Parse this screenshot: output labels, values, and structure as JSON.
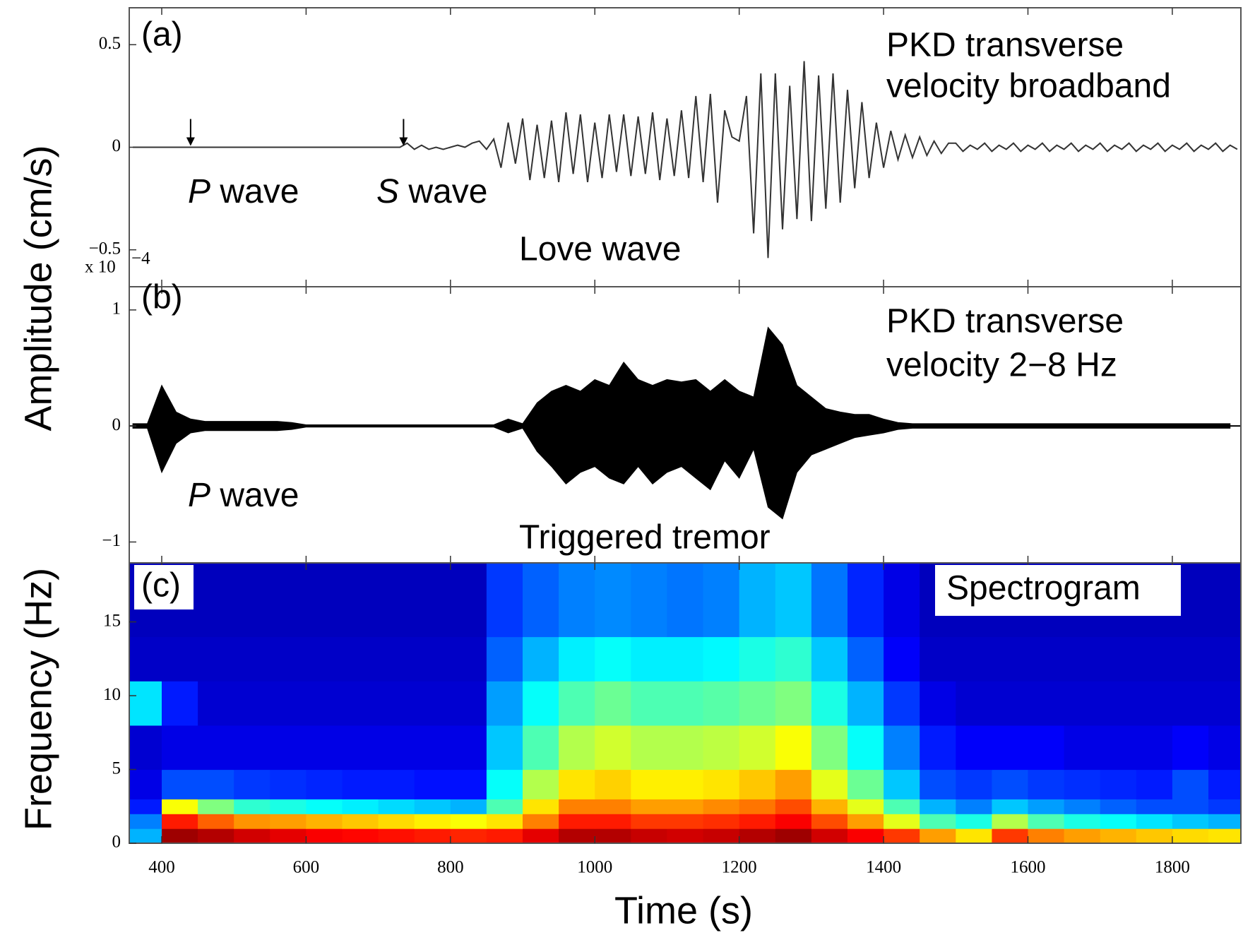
{
  "chart_data": [
    {
      "type": "line",
      "title": [
        "PKD transverse",
        "velocity broadband"
      ],
      "ylabel": "Amplitude (cm/s)",
      "annotations": [
        "(a)",
        "P wave",
        "S wave",
        "Love wave"
      ],
      "scale_label": "x 10",
      "scale_exponent": "−4",
      "arrows_x": [
        440,
        735
      ],
      "color": "#333333",
      "xlim": [
        355,
        1895
      ],
      "ylim": [
        -0.68,
        0.68
      ],
      "yticks": [
        0.5,
        0,
        {
          "value": -0.5,
          "label": "−0.5"
        }
      ],
      "x": [
        360,
        370,
        380,
        390,
        400,
        410,
        420,
        430,
        440,
        450,
        460,
        470,
        480,
        490,
        500,
        510,
        520,
        530,
        540,
        550,
        560,
        570,
        580,
        590,
        600,
        610,
        620,
        630,
        640,
        650,
        660,
        670,
        680,
        690,
        700,
        710,
        720,
        730,
        740,
        750,
        760,
        770,
        780,
        790,
        800,
        810,
        820,
        830,
        840,
        850,
        860,
        870,
        880,
        890,
        900,
        910,
        920,
        930,
        940,
        950,
        960,
        970,
        980,
        990,
        1000,
        1010,
        1020,
        1030,
        1040,
        1050,
        1060,
        1070,
        1080,
        1090,
        1100,
        1110,
        1120,
        1130,
        1140,
        1150,
        1160,
        1170,
        1180,
        1190,
        1200,
        1210,
        1220,
        1230,
        1240,
        1250,
        1260,
        1270,
        1280,
        1290,
        1300,
        1310,
        1320,
        1330,
        1340,
        1350,
        1360,
        1370,
        1380,
        1390,
        1400,
        1410,
        1420,
        1430,
        1440,
        1450,
        1460,
        1470,
        1480,
        1490,
        1500,
        1510,
        1520,
        1530,
        1540,
        1550,
        1560,
        1570,
        1580,
        1590,
        1600,
        1610,
        1620,
        1630,
        1640,
        1650,
        1660,
        1670,
        1680,
        1690,
        1700,
        1710,
        1720,
        1730,
        1740,
        1750,
        1760,
        1770,
        1780,
        1790,
        1800,
        1810,
        1820,
        1830,
        1840,
        1850,
        1860,
        1870,
        1880,
        1890
      ],
      "values": [
        0,
        0,
        0,
        0,
        0,
        0,
        0,
        0,
        0,
        0,
        0,
        0,
        0,
        0,
        0,
        0,
        0,
        0,
        0,
        0,
        0,
        0,
        0,
        0,
        0,
        0,
        0,
        0,
        0,
        0,
        0,
        0,
        0,
        0,
        0,
        0,
        0,
        0,
        0.02,
        -0.01,
        0.01,
        -0.01,
        0,
        -0.01,
        0,
        0.01,
        0,
        0.02,
        0.03,
        -0.01,
        0.04,
        -0.1,
        0.12,
        -0.08,
        0.14,
        -0.16,
        0.11,
        -0.15,
        0.13,
        -0.17,
        0.17,
        -0.13,
        0.16,
        -0.17,
        0.12,
        -0.15,
        0.16,
        -0.12,
        0.16,
        -0.14,
        0.15,
        -0.13,
        0.17,
        -0.16,
        0.14,
        -0.14,
        0.18,
        -0.15,
        0.25,
        -0.17,
        0.26,
        -0.27,
        0.18,
        0.05,
        0.03,
        0.25,
        -0.42,
        0.36,
        -0.54,
        0.36,
        -0.4,
        0.3,
        -0.35,
        0.42,
        -0.36,
        0.35,
        -0.3,
        0.36,
        -0.27,
        0.28,
        -0.2,
        0.22,
        -0.15,
        0.12,
        -0.1,
        0.08,
        -0.06,
        0.06,
        -0.05,
        0.05,
        -0.04,
        0.03,
        -0.03,
        0.02,
        0.02,
        -0.02,
        0.01,
        -0.01,
        0.02,
        -0.02,
        0.01,
        -0.01,
        0.02,
        -0.02,
        0.01,
        -0.01,
        0.02,
        -0.02,
        0.01,
        -0.01,
        0.02,
        -0.02,
        0.01,
        -0.01,
        0.02,
        -0.02,
        0.01,
        -0.01,
        0.02,
        -0.02,
        0.01,
        -0.01,
        0.02,
        -0.02,
        0.01,
        -0.01,
        0.02,
        -0.02,
        0.01,
        -0.01,
        0.02,
        -0.02,
        0.01,
        -0.01
      ]
    },
    {
      "type": "envelope",
      "title": [
        "PKD transverse",
        "velocity 2−8 Hz"
      ],
      "annotations": [
        "(b)",
        "P wave",
        "Triggered tremor"
      ],
      "color": "#000000",
      "xlim": [
        355,
        1895
      ],
      "ylim": [
        -1.18,
        1.2
      ],
      "yticks": [
        1,
        0,
        {
          "value": -1,
          "label": "−1"
        }
      ],
      "x": [
        360,
        380,
        400,
        420,
        440,
        460,
        480,
        500,
        520,
        540,
        560,
        580,
        600,
        620,
        640,
        660,
        680,
        700,
        720,
        740,
        760,
        780,
        800,
        820,
        840,
        860,
        880,
        900,
        920,
        940,
        960,
        980,
        1000,
        1020,
        1040,
        1060,
        1080,
        1100,
        1120,
        1140,
        1160,
        1180,
        1200,
        1220,
        1240,
        1260,
        1280,
        1300,
        1320,
        1340,
        1360,
        1380,
        1400,
        1420,
        1440,
        1460,
        1480,
        1500,
        1520,
        1540,
        1560,
        1580,
        1600,
        1620,
        1640,
        1660,
        1680,
        1700,
        1720,
        1740,
        1760,
        1780,
        1800,
        1820,
        1840,
        1860,
        1880
      ],
      "series": [
        {
          "values": [
            0.02,
            0.02,
            0.35,
            0.12,
            0.06,
            0.04,
            0.04,
            0.04,
            0.04,
            0.04,
            0.04,
            0.03,
            0.01,
            0.01,
            0.01,
            0.01,
            0.01,
            0.01,
            0.01,
            0.01,
            0.01,
            0.01,
            0.01,
            0.01,
            0.01,
            0.01,
            0.06,
            0.02,
            0.2,
            0.3,
            0.35,
            0.3,
            0.4,
            0.35,
            0.55,
            0.4,
            0.35,
            0.4,
            0.38,
            0.4,
            0.3,
            0.4,
            0.3,
            0.25,
            0.85,
            0.7,
            0.35,
            0.25,
            0.15,
            0.12,
            0.1,
            0.1,
            0.06,
            0.03,
            0.02,
            0.02,
            0.02,
            0.02,
            0.02,
            0.02,
            0.02,
            0.02,
            0.02,
            0.02,
            0.02,
            0.02,
            0.02,
            0.02,
            0.02,
            0.02,
            0.02,
            0.02,
            0.02,
            0.02,
            0.02,
            0.02,
            0.02
          ]
        },
        {
          "values": [
            -0.02,
            -0.02,
            -0.4,
            -0.15,
            -0.06,
            -0.04,
            -0.04,
            -0.04,
            -0.04,
            -0.04,
            -0.04,
            -0.03,
            -0.01,
            -0.01,
            -0.01,
            -0.01,
            -0.01,
            -0.01,
            -0.01,
            -0.01,
            -0.01,
            -0.01,
            -0.01,
            -0.01,
            -0.01,
            -0.01,
            -0.06,
            -0.02,
            -0.22,
            -0.35,
            -0.5,
            -0.4,
            -0.35,
            -0.45,
            -0.5,
            -0.35,
            -0.5,
            -0.4,
            -0.35,
            -0.45,
            -0.55,
            -0.3,
            -0.45,
            -0.2,
            -0.7,
            -0.8,
            -0.4,
            -0.25,
            -0.2,
            -0.15,
            -0.1,
            -0.08,
            -0.06,
            -0.03,
            -0.02,
            -0.02,
            -0.02,
            -0.02,
            -0.02,
            -0.02,
            -0.02,
            -0.02,
            -0.02,
            -0.02,
            -0.02,
            -0.02,
            -0.02,
            -0.02,
            -0.02,
            -0.02,
            -0.02,
            -0.02,
            -0.02,
            -0.02,
            -0.02,
            -0.02,
            -0.02
          ]
        }
      ]
    },
    {
      "type": "heatmap",
      "title": "Spectrogram",
      "annotations": [
        "(c)"
      ],
      "xlabel": "Time (s)",
      "ylabel": "Frequency (Hz)",
      "colormap": "jet",
      "xlim": [
        355,
        1895
      ],
      "ylim": [
        0,
        19
      ],
      "xticks": [
        400,
        600,
        800,
        1000,
        1200,
        1400,
        1600,
        1800
      ],
      "yticks": [
        0,
        5,
        10,
        15
      ],
      "x_edges": [
        355,
        400,
        450,
        500,
        550,
        600,
        650,
        700,
        750,
        800,
        850,
        900,
        950,
        1000,
        1050,
        1100,
        1150,
        1200,
        1250,
        1300,
        1350,
        1400,
        1450,
        1500,
        1550,
        1600,
        1650,
        1700,
        1750,
        1800,
        1850,
        1895
      ],
      "y_edges": [
        0,
        1,
        2,
        3,
        5,
        8,
        11,
        14,
        19
      ],
      "values": [
        [
          0.3,
          0.97,
          0.95,
          0.92,
          0.9,
          0.88,
          0.87,
          0.86,
          0.85,
          0.84,
          0.85,
          0.9,
          0.95,
          0.95,
          0.93,
          0.92,
          0.93,
          0.95,
          0.97,
          0.92,
          0.88,
          0.82,
          0.72,
          0.65,
          0.82,
          0.75,
          0.72,
          0.7,
          0.68,
          0.66,
          0.65
        ],
        [
          0.25,
          0.85,
          0.78,
          0.73,
          0.72,
          0.7,
          0.68,
          0.66,
          0.64,
          0.62,
          0.65,
          0.75,
          0.85,
          0.85,
          0.82,
          0.82,
          0.83,
          0.85,
          0.88,
          0.8,
          0.72,
          0.6,
          0.45,
          0.4,
          0.55,
          0.45,
          0.4,
          0.38,
          0.35,
          0.32,
          0.3
        ],
        [
          0.15,
          0.62,
          0.5,
          0.42,
          0.4,
          0.38,
          0.36,
          0.34,
          0.32,
          0.3,
          0.45,
          0.65,
          0.75,
          0.75,
          0.72,
          0.72,
          0.74,
          0.76,
          0.8,
          0.7,
          0.6,
          0.45,
          0.3,
          0.25,
          0.32,
          0.28,
          0.25,
          0.22,
          0.2,
          0.2,
          0.18
        ],
        [
          0.1,
          0.2,
          0.2,
          0.18,
          0.17,
          0.16,
          0.15,
          0.15,
          0.14,
          0.14,
          0.38,
          0.55,
          0.65,
          0.67,
          0.64,
          0.64,
          0.65,
          0.68,
          0.72,
          0.6,
          0.48,
          0.32,
          0.2,
          0.18,
          0.2,
          0.18,
          0.17,
          0.16,
          0.15,
          0.2,
          0.15
        ],
        [
          0.08,
          0.1,
          0.1,
          0.1,
          0.1,
          0.1,
          0.1,
          0.1,
          0.1,
          0.1,
          0.32,
          0.45,
          0.55,
          0.58,
          0.55,
          0.55,
          0.56,
          0.58,
          0.62,
          0.5,
          0.38,
          0.25,
          0.15,
          0.12,
          0.12,
          0.12,
          0.1,
          0.1,
          0.1,
          0.12,
          0.1
        ],
        [
          0.35,
          0.15,
          0.08,
          0.08,
          0.08,
          0.08,
          0.08,
          0.08,
          0.08,
          0.08,
          0.28,
          0.38,
          0.45,
          0.48,
          0.45,
          0.45,
          0.46,
          0.48,
          0.5,
          0.4,
          0.3,
          0.18,
          0.1,
          0.08,
          0.08,
          0.08,
          0.08,
          0.08,
          0.08,
          0.08,
          0.08
        ],
        [
          0.07,
          0.07,
          0.07,
          0.07,
          0.07,
          0.07,
          0.07,
          0.07,
          0.07,
          0.07,
          0.22,
          0.3,
          0.36,
          0.38,
          0.36,
          0.36,
          0.37,
          0.4,
          0.42,
          0.32,
          0.22,
          0.12,
          0.07,
          0.07,
          0.07,
          0.07,
          0.07,
          0.07,
          0.07,
          0.07,
          0.07
        ],
        [
          0.06,
          0.06,
          0.06,
          0.06,
          0.06,
          0.06,
          0.06,
          0.06,
          0.06,
          0.06,
          0.18,
          0.22,
          0.25,
          0.26,
          0.25,
          0.24,
          0.25,
          0.3,
          0.32,
          0.24,
          0.16,
          0.1,
          0.06,
          0.06,
          0.06,
          0.06,
          0.06,
          0.06,
          0.06,
          0.06,
          0.06
        ]
      ]
    }
  ]
}
